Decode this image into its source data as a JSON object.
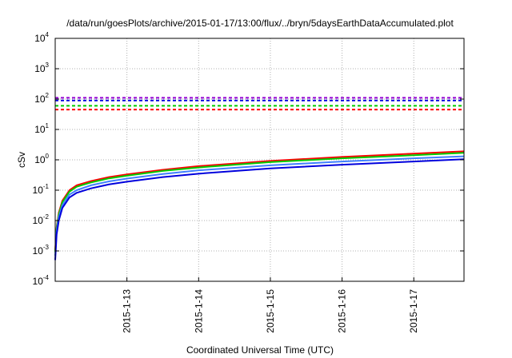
{
  "chart_data": {
    "type": "line",
    "title": "/data/run/goesPlots/archive/2015-01-17/13:00/flux/../bryn/5daysEarthDataAccumulated.plot",
    "xlabel": "Coordinated Universal Time (UTC)",
    "ylabel": "cSv",
    "yscale": "log",
    "ylim": [
      0.0001,
      10000
    ],
    "xlim": [
      0,
      5.7
    ],
    "grid": true,
    "x_ticks": [
      {
        "x": 1,
        "label": "2015-1-13"
      },
      {
        "x": 2,
        "label": "2015-1-14"
      },
      {
        "x": 3,
        "label": "2015-1-15"
      },
      {
        "x": 4,
        "label": "2015-1-16"
      },
      {
        "x": 5,
        "label": "2015-1-17"
      }
    ],
    "y_ticks": [
      {
        "value": 0.0001,
        "base": "10",
        "exp": "-4"
      },
      {
        "value": 0.001,
        "base": "10",
        "exp": "-3"
      },
      {
        "value": 0.01,
        "base": "10",
        "exp": "-2"
      },
      {
        "value": 0.1,
        "base": "10",
        "exp": "-1"
      },
      {
        "value": 1,
        "base": "10",
        "exp": "0"
      },
      {
        "value": 10,
        "base": "10",
        "exp": "1"
      },
      {
        "value": 100,
        "base": "10",
        "exp": "2"
      },
      {
        "value": 1000,
        "base": "10",
        "exp": "3"
      },
      {
        "value": 10000,
        "base": "10",
        "exp": "4"
      }
    ],
    "series": [
      {
        "color": "#ff0000",
        "style": "solid",
        "x": [
          0,
          0.02,
          0.05,
          0.1,
          0.2,
          0.3,
          0.5,
          0.75,
          1.0,
          1.5,
          2.0,
          3.0,
          4.0,
          5.0,
          5.7
        ],
        "y": [
          0.001,
          0.006,
          0.018,
          0.045,
          0.1,
          0.145,
          0.2,
          0.27,
          0.33,
          0.47,
          0.62,
          0.92,
          1.25,
          1.6,
          1.9
        ]
      },
      {
        "color": "#00cc00",
        "style": "solid",
        "x": [
          0,
          0.02,
          0.05,
          0.1,
          0.2,
          0.3,
          0.5,
          0.75,
          1.0,
          1.5,
          2.0,
          3.0,
          4.0,
          5.0,
          5.7
        ],
        "y": [
          0.0009,
          0.0055,
          0.016,
          0.04,
          0.09,
          0.13,
          0.18,
          0.245,
          0.3,
          0.43,
          0.56,
          0.84,
          1.12,
          1.42,
          1.7
        ]
      },
      {
        "color": "#3f7fff",
        "style": "solid",
        "x": [
          0,
          0.02,
          0.05,
          0.1,
          0.2,
          0.3,
          0.5,
          0.75,
          1.0,
          1.5,
          2.0,
          3.0,
          4.0,
          5.0,
          5.7
        ],
        "y": [
          0.0007,
          0.0045,
          0.013,
          0.032,
          0.072,
          0.1,
          0.145,
          0.195,
          0.24,
          0.34,
          0.45,
          0.66,
          0.88,
          1.12,
          1.3
        ]
      },
      {
        "color": "#0000dd",
        "style": "solid",
        "x": [
          0,
          0.02,
          0.05,
          0.1,
          0.2,
          0.3,
          0.5,
          0.75,
          1.0,
          1.5,
          2.0,
          3.0,
          4.0,
          5.0,
          5.7
        ],
        "y": [
          0.0005,
          0.0035,
          0.01,
          0.026,
          0.058,
          0.082,
          0.115,
          0.155,
          0.19,
          0.27,
          0.35,
          0.52,
          0.69,
          0.88,
          1.05
        ]
      },
      {
        "color": "#ff0000",
        "style": "dashed",
        "x": [
          0,
          5.7
        ],
        "y": [
          45,
          45
        ]
      },
      {
        "color": "#00cc00",
        "style": "dashed",
        "x": [
          0,
          5.7
        ],
        "y": [
          60,
          60
        ]
      },
      {
        "color": "#0000dd",
        "style": "dashed",
        "x": [
          0,
          5.7
        ],
        "y": [
          90,
          90
        ]
      },
      {
        "color": "#9400d3",
        "style": "dashed",
        "x": [
          0,
          5.7
        ],
        "y": [
          110,
          110
        ]
      }
    ]
  }
}
